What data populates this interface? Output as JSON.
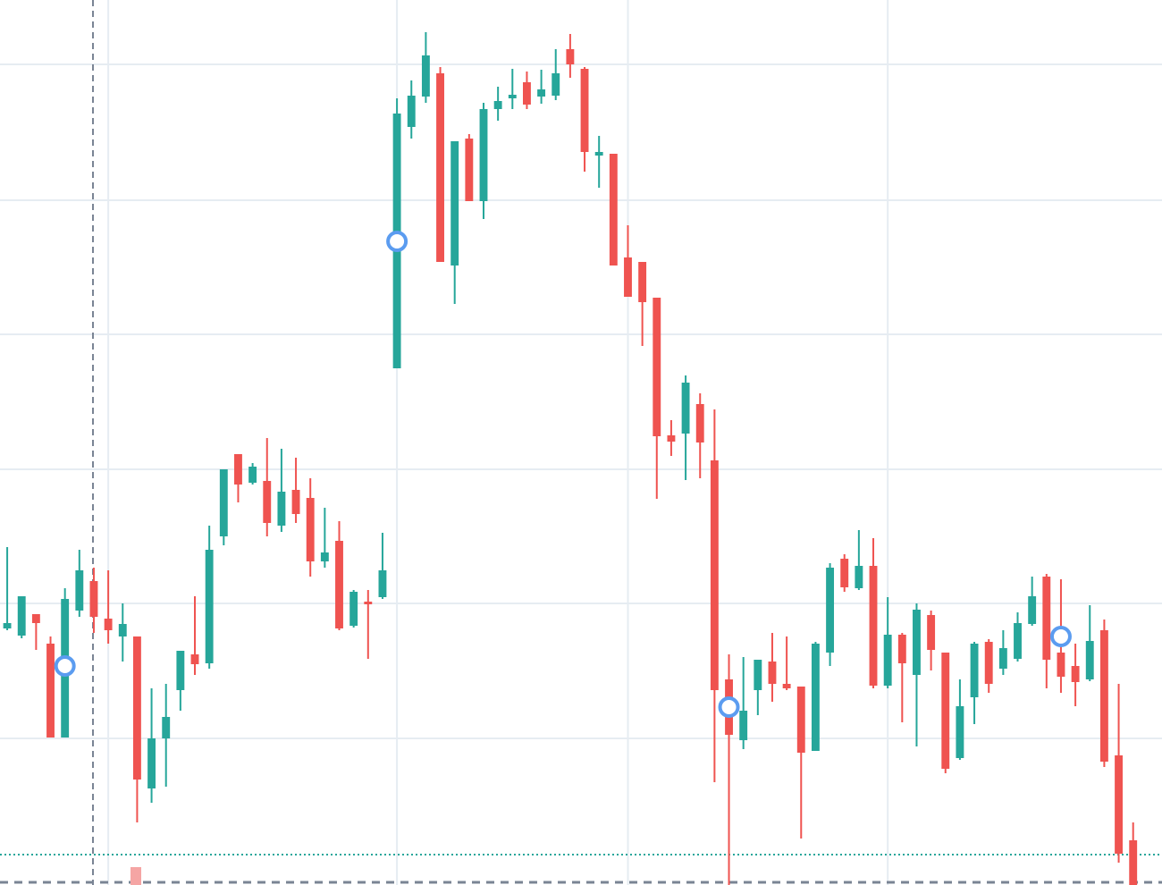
{
  "chart_data": {
    "type": "candlestick",
    "up_color": "#26a69a",
    "down_color": "#ef5350",
    "grid": true,
    "grid_color": "#e6ecf2",
    "marker_color": "#5b9cf0",
    "xlim": [
      -0.5,
      80
    ],
    "xticks": [
      7,
      27,
      43,
      61
    ],
    "ylim": [
      0,
      990
    ],
    "yticks": [
      164,
      315,
      465,
      616,
      766,
      918
    ],
    "open": [
      287,
      279,
      303,
      270,
      165,
      307,
      340,
      298,
      278,
      278,
      108,
      164,
      218,
      258,
      248,
      390,
      482,
      450,
      452,
      402,
      442,
      433,
      362,
      385,
      290,
      317,
      322,
      578,
      848,
      882,
      908,
      693,
      835,
      765,
      868,
      880,
      898,
      882,
      883,
      935,
      913,
      816,
      818,
      702,
      697,
      657,
      503,
      505,
      538,
      475,
      230,
      162,
      218,
      250,
      225,
      222,
      150,
      260,
      365,
      332,
      357,
      223,
      280,
      235,
      302,
      260,
      142,
      210,
      272,
      242,
      253,
      292,
      345,
      260,
      245,
      230,
      285,
      145,
      50
    ],
    "high": [
      378,
      323,
      303,
      278,
      332,
      375,
      355,
      352,
      315,
      278,
      220,
      225,
      262,
      323,
      402,
      465,
      482,
      472,
      500,
      488,
      478,
      455,
      422,
      407,
      330,
      330,
      394,
      880,
      900,
      954,
      915,
      832,
      840,
      875,
      893,
      913,
      910,
      912,
      935,
      952,
      915,
      838,
      818,
      738,
      697,
      657,
      520,
      570,
      550,
      532,
      258,
      255,
      252,
      282,
      278,
      222,
      272,
      360,
      370,
      397,
      388,
      322,
      282,
      315,
      307,
      260,
      230,
      272,
      275,
      285,
      305,
      345,
      348,
      342,
      270,
      313,
      297,
      225,
      70
    ],
    "low": [
      285,
      276,
      263,
      165,
      165,
      300,
      282,
      270,
      250,
      70,
      92,
      110,
      195,
      235,
      242,
      380,
      428,
      448,
      390,
      395,
      405,
      345,
      355,
      285,
      288,
      253,
      320,
      578,
      835,
      875,
      697,
      650,
      765,
      745,
      855,
      868,
      868,
      874,
      878,
      903,
      798,
      780,
      693,
      658,
      603,
      432,
      480,
      453,
      455,
      115,
      0,
      152,
      190,
      205,
      218,
      52,
      150,
      245,
      328,
      330,
      220,
      220,
      182,
      155,
      240,
      125,
      140,
      180,
      215,
      235,
      250,
      290,
      220,
      215,
      200,
      228,
      132,
      25,
      0
    ],
    "close": [
      293,
      323,
      293,
      165,
      320,
      352,
      300,
      285,
      292,
      118,
      164,
      188,
      262,
      247,
      375,
      465,
      448,
      468,
      405,
      440,
      415,
      362,
      372,
      287,
      328,
      314,
      352,
      863,
      883,
      928,
      697,
      832,
      765,
      868,
      877,
      884,
      873,
      890,
      908,
      918,
      820,
      820,
      693,
      658,
      652,
      502,
      496,
      562,
      495,
      218,
      168,
      195,
      252,
      225,
      220,
      148,
      270,
      355,
      333,
      357,
      223,
      280,
      248,
      308,
      263,
      130,
      200,
      270,
      225,
      265,
      293,
      323,
      252,
      233,
      227,
      273,
      138,
      35,
      0
    ],
    "markers": [
      {
        "index": 4,
        "value": 245
      },
      {
        "index": 27,
        "value": 720
      },
      {
        "index": 50,
        "value": 199
      },
      {
        "index": 73,
        "value": 278
      }
    ],
    "last_price": 34,
    "last_price_color": "#26a69a"
  }
}
